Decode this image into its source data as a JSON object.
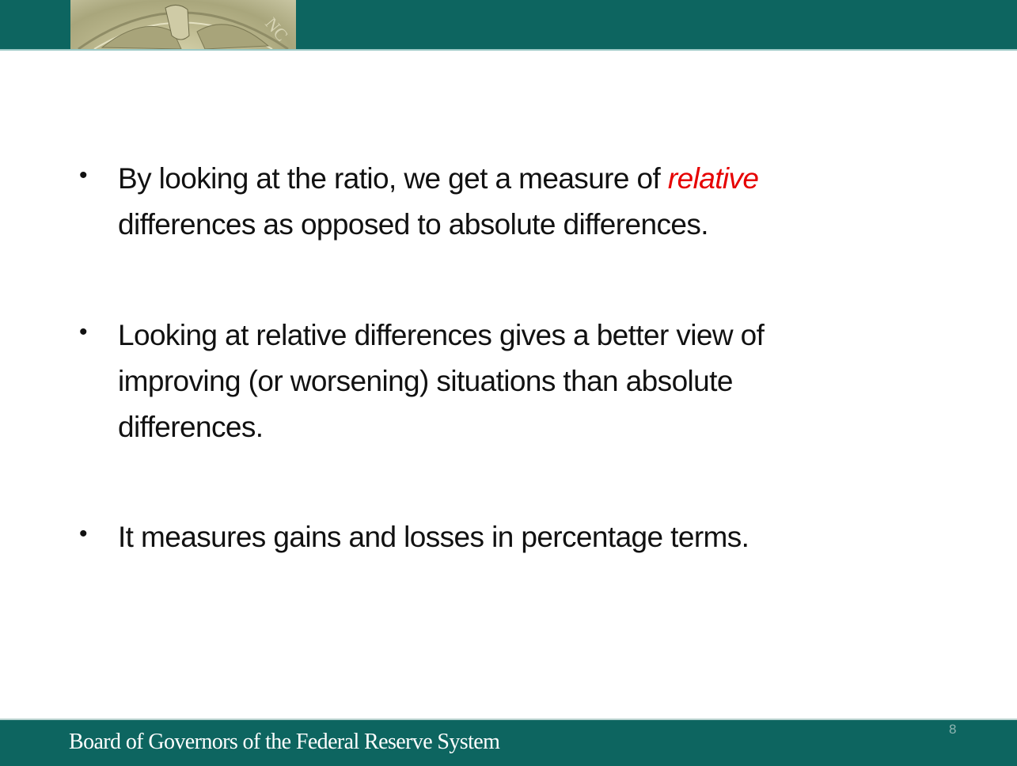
{
  "header": {
    "logo": "Federal Reserve seal (eagle)",
    "color": "#0d6560"
  },
  "bullets": [
    {
      "lines": [
        [
          "By looking at the ratio, we get a measure of ",
          "relative"
        ],
        [
          "differences as opposed to absolute differences."
        ]
      ]
    },
    {
      "lines": [
        "Looking at relative differences gives a better view of",
        "improving (or worsening) situations than absolute",
        "differences."
      ]
    },
    {
      "lines": [
        "It measures gains and losses in percentage terms."
      ]
    }
  ],
  "emphasis_color": "#e60000",
  "bullet_symbol": "•",
  "footer": {
    "text": "Board of Governors of the Federal Reserve System",
    "page_number": "8"
  }
}
